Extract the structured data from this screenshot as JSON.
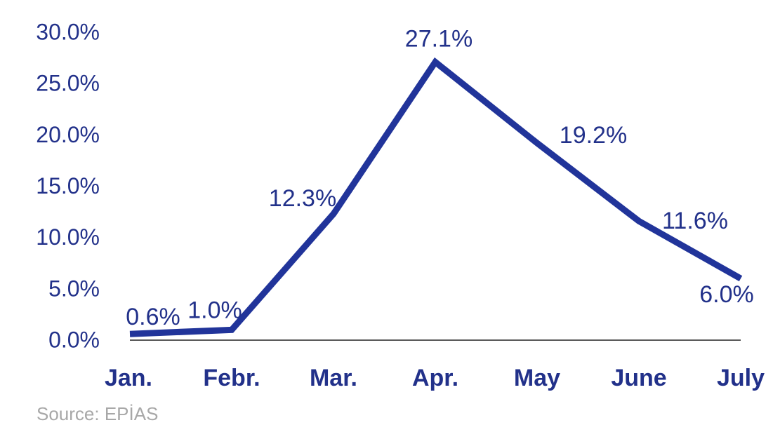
{
  "chart_data": {
    "type": "line",
    "categories": [
      "Jan.",
      "Febr.",
      "Mar.",
      "Apr.",
      "May",
      "June",
      "July"
    ],
    "series": [
      {
        "name": null,
        "color": "#21349a",
        "values": [
          0.6,
          1.0,
          12.3,
          27.1,
          19.2,
          11.6,
          6.0
        ],
        "value_labels": [
          "0.6%",
          "1.0%",
          "12.3%",
          "27.1%",
          "19.2%",
          "11.6%",
          "6.0%"
        ]
      }
    ],
    "ylim": [
      0,
      30
    ],
    "yticks": [
      {
        "value": 0,
        "label": "0.0%"
      },
      {
        "value": 5,
        "label": "5.0%"
      },
      {
        "value": 10,
        "label": "10.0%"
      },
      {
        "value": 15,
        "label": "15.0%"
      },
      {
        "value": 20,
        "label": "20.0%"
      },
      {
        "value": 25,
        "label": "25.0%"
      },
      {
        "value": 30,
        "label": "30.0%"
      }
    ],
    "source": "Source: EPİAS"
  }
}
